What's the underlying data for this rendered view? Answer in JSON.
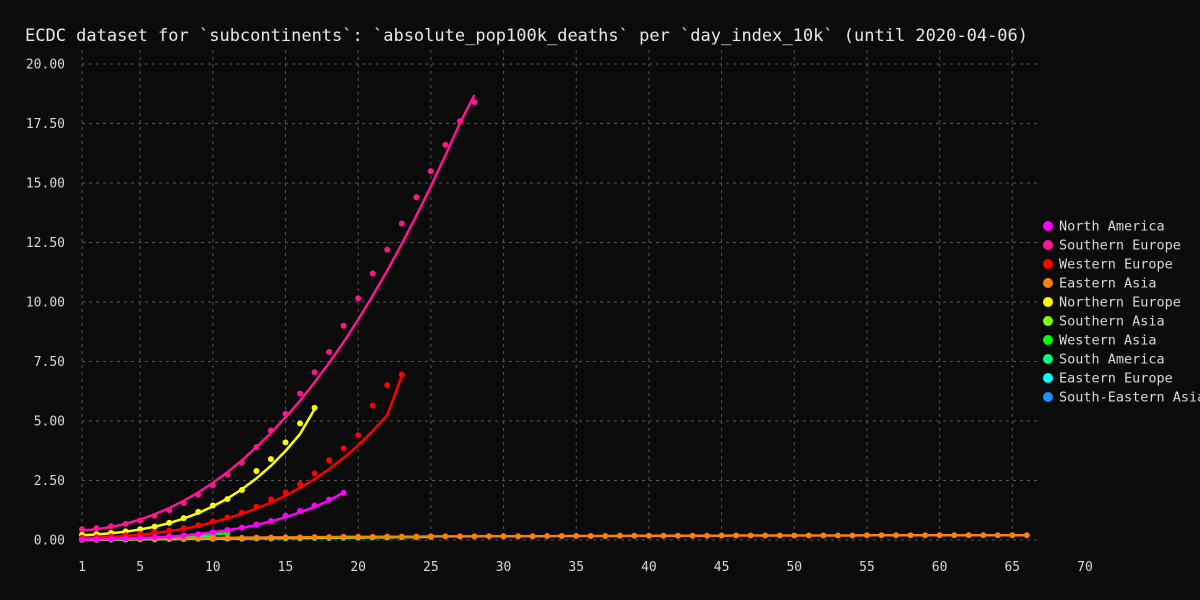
{
  "chart_data": {
    "type": "line",
    "title": "ECDC dataset for `subcontinents`: `absolute_pop100k_deaths` per `day_index_10k` (until 2020-04-06)",
    "xlabel": "",
    "ylabel": "",
    "xlim": [
      1,
      70
    ],
    "ylim": [
      0,
      20
    ],
    "x_ticks": [
      1,
      5,
      10,
      15,
      20,
      25,
      30,
      35,
      40,
      45,
      50,
      55,
      60,
      65,
      70
    ],
    "y_ticks": [
      0,
      2.5,
      5,
      7.5,
      10,
      12.5,
      15,
      17.5,
      20
    ],
    "grid": true,
    "legend_position": "right",
    "series": [
      {
        "name": "North America",
        "color": "#ff00ff",
        "x": [
          1,
          2,
          3,
          4,
          5,
          6,
          7,
          8,
          9,
          10,
          11,
          12,
          13,
          14,
          15,
          16,
          17,
          18,
          19
        ],
        "y": [
          0.02,
          0.03,
          0.05,
          0.07,
          0.09,
          0.12,
          0.15,
          0.19,
          0.24,
          0.32,
          0.42,
          0.52,
          0.65,
          0.8,
          1.02,
          1.22,
          1.45,
          1.7,
          1.98
        ],
        "fit": [
          0.02,
          0.03,
          0.04,
          0.06,
          0.08,
          0.11,
          0.14,
          0.19,
          0.25,
          0.32,
          0.41,
          0.51,
          0.63,
          0.78,
          0.96,
          1.16,
          1.39,
          1.66,
          2.0
        ]
      },
      {
        "name": "Southern Europe",
        "color": "#ff1493",
        "x": [
          1,
          2,
          3,
          4,
          5,
          6,
          7,
          8,
          9,
          10,
          11,
          12,
          13,
          14,
          15,
          16,
          17,
          18,
          19,
          20,
          21,
          22,
          23,
          24,
          25,
          26,
          27,
          28
        ],
        "y": [
          0.45,
          0.5,
          0.58,
          0.68,
          0.82,
          1.02,
          1.25,
          1.55,
          1.9,
          2.3,
          2.75,
          3.25,
          3.9,
          4.6,
          5.3,
          6.15,
          7.05,
          7.9,
          9.0,
          10.15,
          11.2,
          12.2,
          13.3,
          14.4,
          15.5,
          16.6,
          17.6,
          18.4
        ],
        "fit": [
          0.4,
          0.45,
          0.55,
          0.68,
          0.86,
          1.08,
          1.34,
          1.65,
          2.0,
          2.4,
          2.85,
          3.35,
          3.9,
          4.5,
          5.15,
          5.85,
          6.62,
          7.44,
          8.32,
          9.26,
          10.26,
          11.32,
          12.44,
          13.62,
          14.86,
          16.16,
          17.51,
          18.7
        ]
      },
      {
        "name": "Western Europe",
        "color": "#ff0000",
        "x": [
          1,
          2,
          3,
          4,
          5,
          6,
          7,
          8,
          9,
          10,
          11,
          12,
          13,
          14,
          15,
          16,
          17,
          18,
          19,
          20,
          21,
          22,
          23
        ],
        "y": [
          0.1,
          0.12,
          0.16,
          0.2,
          0.26,
          0.33,
          0.4,
          0.5,
          0.62,
          0.78,
          0.95,
          1.15,
          1.4,
          1.7,
          2.0,
          2.35,
          2.8,
          3.35,
          3.85,
          4.4,
          5.65,
          6.5,
          6.95
        ],
        "fit": [
          0.08,
          0.1,
          0.13,
          0.17,
          0.22,
          0.29,
          0.37,
          0.47,
          0.59,
          0.74,
          0.91,
          1.1,
          1.32,
          1.57,
          1.86,
          2.19,
          2.56,
          2.98,
          3.45,
          3.98,
          4.58,
          5.25,
          6.9
        ]
      },
      {
        "name": "Eastern Asia",
        "color": "#ff7f0e",
        "x": [
          1,
          2,
          3,
          4,
          5,
          6,
          7,
          8,
          9,
          10,
          11,
          12,
          13,
          14,
          15,
          16,
          17,
          18,
          19,
          20,
          21,
          22,
          23,
          24,
          25,
          26,
          27,
          28,
          29,
          30,
          31,
          32,
          33,
          34,
          35,
          36,
          37,
          38,
          39,
          40,
          41,
          42,
          43,
          44,
          45,
          46,
          47,
          48,
          49,
          50,
          51,
          52,
          53,
          54,
          55,
          56,
          57,
          58,
          59,
          60,
          61,
          62,
          63,
          64,
          65,
          66
        ],
        "y": [
          0.01,
          0.02,
          0.03,
          0.04,
          0.05,
          0.06,
          0.06,
          0.07,
          0.08,
          0.08,
          0.09,
          0.09,
          0.1,
          0.1,
          0.11,
          0.11,
          0.12,
          0.12,
          0.13,
          0.13,
          0.13,
          0.14,
          0.14,
          0.14,
          0.15,
          0.15,
          0.15,
          0.15,
          0.16,
          0.16,
          0.16,
          0.16,
          0.17,
          0.17,
          0.17,
          0.17,
          0.17,
          0.18,
          0.18,
          0.18,
          0.18,
          0.18,
          0.18,
          0.18,
          0.19,
          0.19,
          0.19,
          0.19,
          0.19,
          0.19,
          0.19,
          0.19,
          0.19,
          0.19,
          0.2,
          0.2,
          0.2,
          0.2,
          0.2,
          0.2,
          0.2,
          0.2,
          0.2,
          0.2,
          0.2,
          0.2
        ],
        "fit": [
          0.02,
          0.03,
          0.04,
          0.05,
          0.06,
          0.06,
          0.07,
          0.08,
          0.08,
          0.09,
          0.09,
          0.1,
          0.1,
          0.11,
          0.11,
          0.11,
          0.12,
          0.12,
          0.13,
          0.13,
          0.13,
          0.14,
          0.14,
          0.14,
          0.15,
          0.15,
          0.15,
          0.15,
          0.16,
          0.16,
          0.16,
          0.16,
          0.16,
          0.17,
          0.17,
          0.17,
          0.17,
          0.17,
          0.18,
          0.18,
          0.18,
          0.18,
          0.18,
          0.18,
          0.18,
          0.19,
          0.19,
          0.19,
          0.19,
          0.19,
          0.19,
          0.19,
          0.19,
          0.19,
          0.2,
          0.2,
          0.2,
          0.2,
          0.2,
          0.2,
          0.2,
          0.2,
          0.2,
          0.2,
          0.2,
          0.2
        ]
      },
      {
        "name": "Northern Europe",
        "color": "#ffff00",
        "x": [
          1,
          2,
          3,
          4,
          5,
          6,
          7,
          8,
          9,
          10,
          11,
          12,
          13,
          14,
          15,
          16,
          17
        ],
        "y": [
          0.22,
          0.25,
          0.3,
          0.36,
          0.45,
          0.56,
          0.72,
          0.92,
          1.18,
          1.45,
          1.72,
          2.1,
          2.9,
          3.4,
          4.1,
          4.9,
          5.55
        ],
        "fit": [
          0.2,
          0.23,
          0.28,
          0.35,
          0.44,
          0.56,
          0.71,
          0.9,
          1.13,
          1.41,
          1.74,
          2.13,
          2.59,
          3.12,
          3.74,
          4.45,
          5.5
        ]
      },
      {
        "name": "Southern Asia",
        "color": "#7fff00",
        "x": [
          1,
          2,
          3,
          4,
          5,
          6,
          7,
          8,
          9,
          10,
          11,
          12,
          13,
          14,
          15,
          16,
          17,
          18,
          19,
          20,
          21,
          22,
          23,
          24,
          25
        ],
        "y": [
          0.01,
          0.01,
          0.02,
          0.02,
          0.03,
          0.03,
          0.04,
          0.04,
          0.05,
          0.05,
          0.06,
          0.06,
          0.07,
          0.07,
          0.08,
          0.08,
          0.09,
          0.09,
          0.1,
          0.1,
          0.11,
          0.11,
          0.12,
          0.12,
          0.13
        ],
        "fit": [
          0.01,
          0.01,
          0.02,
          0.02,
          0.03,
          0.03,
          0.04,
          0.04,
          0.05,
          0.05,
          0.06,
          0.06,
          0.07,
          0.07,
          0.08,
          0.08,
          0.09,
          0.09,
          0.1,
          0.1,
          0.11,
          0.11,
          0.12,
          0.12,
          0.13
        ]
      },
      {
        "name": "Western Asia",
        "color": "#00ff00",
        "x": [
          1,
          2,
          3,
          4,
          5,
          6,
          7,
          8,
          9,
          10,
          11
        ],
        "y": [
          0.02,
          0.03,
          0.04,
          0.06,
          0.08,
          0.1,
          0.13,
          0.16,
          0.2,
          0.24,
          0.28
        ],
        "fit": [
          0.02,
          0.03,
          0.04,
          0.06,
          0.08,
          0.1,
          0.13,
          0.16,
          0.2,
          0.24,
          0.28
        ]
      },
      {
        "name": "South America",
        "color": "#00ff7f",
        "x": [
          1,
          2,
          3,
          4,
          5,
          6,
          7,
          8,
          9,
          10
        ],
        "y": [
          0.01,
          0.02,
          0.03,
          0.04,
          0.05,
          0.06,
          0.07,
          0.09,
          0.11,
          0.13
        ],
        "fit": [
          0.01,
          0.02,
          0.03,
          0.04,
          0.05,
          0.06,
          0.07,
          0.09,
          0.11,
          0.13
        ]
      },
      {
        "name": "Eastern Europe",
        "color": "#00ffff",
        "x": [
          1,
          2,
          3,
          4,
          5,
          6,
          7,
          8
        ],
        "y": [
          0.01,
          0.02,
          0.02,
          0.03,
          0.04,
          0.05,
          0.06,
          0.07
        ],
        "fit": [
          0.01,
          0.02,
          0.02,
          0.03,
          0.04,
          0.05,
          0.06,
          0.07
        ]
      },
      {
        "name": "South-Eastern Asia",
        "color": "#1e90ff",
        "x": [
          1,
          2,
          3,
          4,
          5,
          6,
          7,
          8,
          9
        ],
        "y": [
          0.01,
          0.01,
          0.02,
          0.02,
          0.03,
          0.03,
          0.04,
          0.05,
          0.06
        ],
        "fit": [
          0.01,
          0.01,
          0.02,
          0.02,
          0.03,
          0.03,
          0.04,
          0.05,
          0.06
        ]
      }
    ]
  }
}
